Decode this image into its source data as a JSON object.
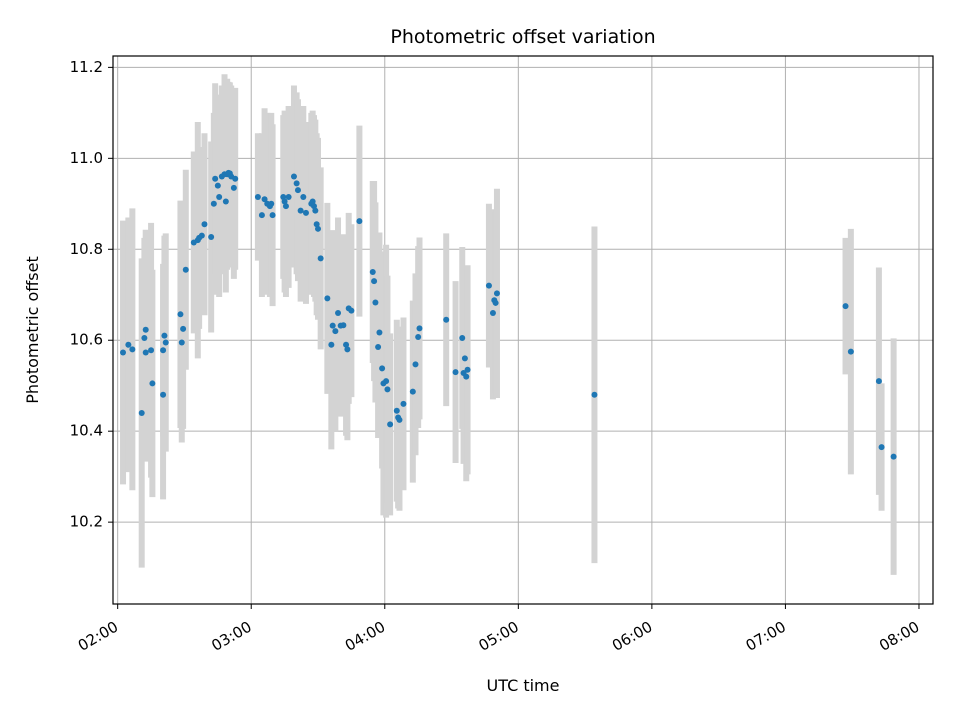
{
  "chart_data": {
    "type": "scatter",
    "title": "Photometric offset variation",
    "xlabel": "UTC time",
    "ylabel": "Photometric offset",
    "grid": true,
    "legend": "none",
    "x_unit": "UTC hours",
    "xlim": [
      1.965,
      8.105
    ],
    "ylim": [
      10.02,
      11.225
    ],
    "x_ticks": [
      {
        "value": 2,
        "label": "02:00"
      },
      {
        "value": 3,
        "label": "03:00"
      },
      {
        "value": 4,
        "label": "04:00"
      },
      {
        "value": 5,
        "label": "05:00"
      },
      {
        "value": 6,
        "label": "06:00"
      },
      {
        "value": 7,
        "label": "07:00"
      },
      {
        "value": 8,
        "label": "08:00"
      }
    ],
    "y_ticks": [
      {
        "value": 10.2,
        "label": "10.2"
      },
      {
        "value": 10.4,
        "label": "10.4"
      },
      {
        "value": 10.6,
        "label": "10.6"
      },
      {
        "value": 10.8,
        "label": "10.8"
      },
      {
        "value": 11.0,
        "label": "11.0"
      },
      {
        "value": 11.2,
        "label": "11.2"
      }
    ],
    "colors": {
      "marker": "#1f77b4",
      "errorbar": "#d3d3d3",
      "grid": "#b0b0b0"
    },
    "series": [
      {
        "points": [
          [
            2.04,
            10.573,
            0.29
          ],
          [
            2.08,
            10.59,
            0.28
          ],
          [
            2.11,
            10.58,
            0.31
          ],
          [
            2.18,
            10.44,
            0.34
          ],
          [
            2.2,
            10.605,
            0.22
          ],
          [
            2.21,
            10.623,
            0.22
          ],
          [
            2.21,
            10.573,
            0.24
          ],
          [
            2.25,
            10.578,
            0.28
          ],
          [
            2.26,
            10.505,
            0.25
          ],
          [
            2.34,
            10.48,
            0.23
          ],
          [
            2.34,
            10.578,
            0.19
          ],
          [
            2.35,
            10.61,
            0.22
          ],
          [
            2.36,
            10.595,
            0.24
          ],
          [
            2.47,
            10.657,
            0.25
          ],
          [
            2.48,
            10.595,
            0.22
          ],
          [
            2.49,
            10.625,
            0.22
          ],
          [
            2.51,
            10.755,
            0.22
          ],
          [
            2.57,
            10.815,
            0.2
          ],
          [
            2.6,
            10.82,
            0.26
          ],
          [
            2.61,
            10.825,
            0.2
          ],
          [
            2.63,
            10.83,
            0.17
          ],
          [
            2.65,
            10.855,
            0.2
          ],
          [
            2.7,
            10.827,
            0.21
          ],
          [
            2.72,
            10.9,
            0.2
          ],
          [
            2.73,
            10.955,
            0.21
          ],
          [
            2.75,
            10.94,
            0.2
          ],
          [
            2.76,
            10.915,
            0.22
          ],
          [
            2.78,
            10.96,
            0.2
          ],
          [
            2.8,
            10.965,
            0.22
          ],
          [
            2.81,
            10.905,
            0.2
          ],
          [
            2.82,
            10.965,
            0.21
          ],
          [
            2.83,
            10.968,
            0.2
          ],
          [
            2.84,
            10.967,
            0.2
          ],
          [
            2.85,
            10.96,
            0.2
          ],
          [
            2.87,
            10.935,
            0.2
          ],
          [
            2.88,
            10.955,
            0.2
          ],
          [
            3.05,
            10.915,
            0.14
          ],
          [
            3.08,
            10.875,
            0.18
          ],
          [
            3.1,
            10.91,
            0.2
          ],
          [
            3.12,
            10.9,
            0.2
          ],
          [
            3.14,
            10.895,
            0.2
          ],
          [
            3.15,
            10.9,
            0.2
          ],
          [
            3.16,
            10.875,
            0.2
          ],
          [
            3.24,
            10.915,
            0.18
          ],
          [
            3.25,
            10.905,
            0.2
          ],
          [
            3.26,
            10.895,
            0.2
          ],
          [
            3.28,
            10.915,
            0.2
          ],
          [
            3.32,
            10.96,
            0.2
          ],
          [
            3.34,
            10.945,
            0.2
          ],
          [
            3.35,
            10.93,
            0.2
          ],
          [
            3.37,
            10.885,
            0.2
          ],
          [
            3.39,
            10.915,
            0.2
          ],
          [
            3.41,
            10.88,
            0.2
          ],
          [
            3.45,
            10.9,
            0.2
          ],
          [
            3.46,
            10.905,
            0.2
          ],
          [
            3.47,
            10.895,
            0.2
          ],
          [
            3.48,
            10.885,
            0.2
          ],
          [
            3.49,
            10.855,
            0.2
          ],
          [
            3.5,
            10.845,
            0.2
          ],
          [
            3.52,
            10.78,
            0.2
          ],
          [
            3.57,
            10.692,
            0.21
          ],
          [
            3.6,
            10.59,
            0.23
          ],
          [
            3.61,
            10.632,
            0.21
          ],
          [
            3.63,
            10.62,
            0.22
          ],
          [
            3.65,
            10.66,
            0.21
          ],
          [
            3.67,
            10.632,
            0.2
          ],
          [
            3.69,
            10.633,
            0.2
          ],
          [
            3.71,
            10.59,
            0.2
          ],
          [
            3.72,
            10.58,
            0.2
          ],
          [
            3.73,
            10.67,
            0.21
          ],
          [
            3.75,
            10.665,
            0.19
          ],
          [
            3.81,
            10.862,
            0.21
          ],
          [
            3.91,
            10.75,
            0.2
          ],
          [
            3.92,
            10.73,
            0.22
          ],
          [
            3.93,
            10.683,
            0.22
          ],
          [
            3.95,
            10.585,
            0.2
          ],
          [
            3.96,
            10.617,
            0.22
          ],
          [
            3.98,
            10.538,
            0.22
          ],
          [
            3.99,
            10.505,
            0.29
          ],
          [
            4.01,
            10.51,
            0.3
          ],
          [
            4.02,
            10.492,
            0.25
          ],
          [
            4.04,
            10.415,
            0.2
          ],
          [
            4.09,
            10.445,
            0.2
          ],
          [
            4.1,
            10.43,
            0.2
          ],
          [
            4.11,
            10.425,
            0.2
          ],
          [
            4.14,
            10.46,
            0.19
          ],
          [
            4.21,
            10.487,
            0.2
          ],
          [
            4.23,
            10.547,
            0.2
          ],
          [
            4.25,
            10.607,
            0.2
          ],
          [
            4.26,
            10.626,
            0.2
          ],
          [
            4.46,
            10.645,
            0.19
          ],
          [
            4.53,
            10.53,
            0.2
          ],
          [
            4.58,
            10.605,
            0.2
          ],
          [
            4.59,
            10.528,
            0.2
          ],
          [
            4.6,
            10.56,
            0.2
          ],
          [
            4.61,
            10.52,
            0.23
          ],
          [
            4.62,
            10.535,
            0.23
          ],
          [
            4.78,
            10.72,
            0.18
          ],
          [
            4.81,
            10.66,
            0.19
          ],
          [
            4.82,
            10.688,
            0.2
          ],
          [
            4.83,
            10.682,
            0.2
          ],
          [
            4.84,
            10.703,
            0.23
          ],
          [
            5.57,
            10.48,
            0.37
          ],
          [
            7.45,
            10.675,
            0.15
          ],
          [
            7.49,
            10.575,
            0.27
          ],
          [
            7.7,
            10.51,
            0.25
          ],
          [
            7.72,
            10.365,
            0.14
          ],
          [
            7.81,
            10.344,
            0.26
          ]
        ]
      }
    ]
  }
}
